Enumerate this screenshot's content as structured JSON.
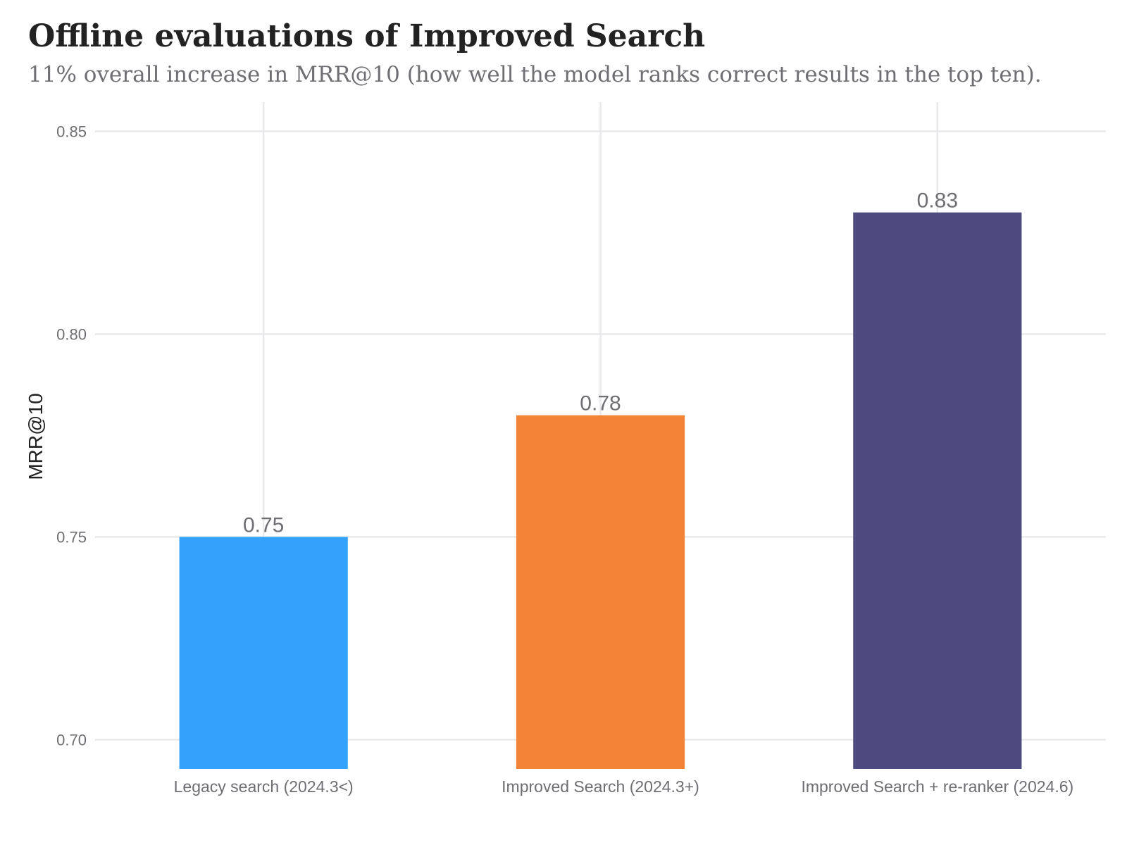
{
  "chart_data": {
    "type": "bar",
    "title": "Offline evaluations of Improved Search",
    "subtitle": "11% overall increase in MRR@10 (how well the model ranks correct results in the top ten).",
    "xlabel": "",
    "ylabel": "MRR@10",
    "categories": [
      "Legacy search (2024.3<)",
      "Improved Search (2024.3+)",
      "Improved Search + re-ranker (2024.6)"
    ],
    "values": [
      0.75,
      0.78,
      0.83
    ],
    "value_labels": [
      "0.75",
      "0.78",
      "0.83"
    ],
    "colors": [
      "#2b9ffc",
      "#f27f31",
      "#46447b"
    ],
    "ylim": [
      0.6928,
      0.8572
    ],
    "yticks": [
      0.7,
      0.75,
      0.8,
      0.85
    ],
    "ytick_labels": [
      "0.70",
      "0.75",
      "0.80",
      "0.85"
    ],
    "grid": true,
    "legend": "none"
  }
}
